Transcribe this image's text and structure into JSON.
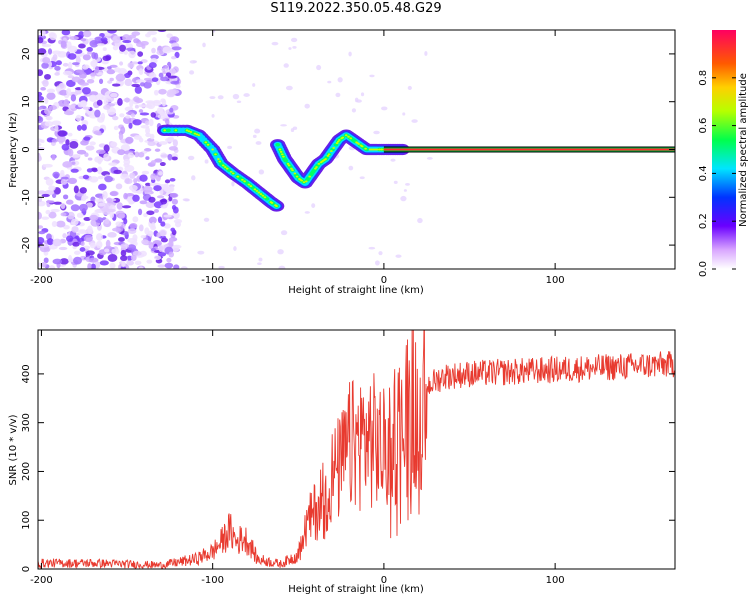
{
  "title": "S119.2022.350.05.48.G29",
  "chart_data": [
    {
      "type": "heatmap",
      "xlabel": "Height of straight line (km)",
      "ylabel": "Frequency (Hz)",
      "xlim": [
        -202,
        170
      ],
      "ylim": [
        -25,
        25
      ],
      "xticks": [
        -200,
        -100,
        0,
        100
      ],
      "yticks": [
        -20,
        -10,
        0,
        10,
        20
      ],
      "colorbar": {
        "label": "Normalized spectral amplitude",
        "range": [
          0,
          1
        ],
        "ticks": [
          0.0,
          0.2,
          0.4,
          0.6,
          0.8
        ]
      },
      "ridge": [
        {
          "x": -128,
          "y": 4
        },
        {
          "x": -115,
          "y": 4
        },
        {
          "x": -108,
          "y": 3
        },
        {
          "x": -100,
          "y": 0
        },
        {
          "x": -95,
          "y": -3
        },
        {
          "x": -88,
          "y": -5
        },
        {
          "x": -80,
          "y": -7
        },
        {
          "x": -73,
          "y": -9
        },
        {
          "x": -66,
          "y": -11
        },
        {
          "x": -62,
          "y": -12
        },
        {
          "x": -62,
          "y": 1
        },
        {
          "x": -58,
          "y": -2
        },
        {
          "x": -54,
          "y": -4
        },
        {
          "x": -50,
          "y": -6
        },
        {
          "x": -46,
          "y": -7
        },
        {
          "x": -42,
          "y": -5
        },
        {
          "x": -38,
          "y": -3
        },
        {
          "x": -34,
          "y": -2
        },
        {
          "x": -30,
          "y": 0
        },
        {
          "x": -26,
          "y": 2
        },
        {
          "x": -22,
          "y": 3
        },
        {
          "x": -18,
          "y": 2
        },
        {
          "x": -14,
          "y": 1
        },
        {
          "x": -10,
          "y": 0
        },
        {
          "x": -4,
          "y": 0
        },
        {
          "x": 4,
          "y": 0
        },
        {
          "x": 12,
          "y": 0
        }
      ],
      "tone_line": {
        "y": 0,
        "x_from": 0,
        "x_to": 170
      }
    },
    {
      "type": "line",
      "xlabel": "Height of straight line (km)",
      "ylabel": "SNR (10 * v/v)",
      "xlim": [
        -202,
        170
      ],
      "ylim": [
        0,
        490
      ],
      "xticks": [
        -200,
        -100,
        0,
        100
      ],
      "yticks": [
        0,
        100,
        200,
        300,
        400
      ],
      "series_color": "#e83a2f",
      "envelope": [
        {
          "x": -202,
          "y": 12
        },
        {
          "x": -170,
          "y": 12
        },
        {
          "x": -130,
          "y": 8
        },
        {
          "x": -110,
          "y": 20
        },
        {
          "x": -100,
          "y": 35
        },
        {
          "x": -95,
          "y": 55
        },
        {
          "x": -90,
          "y": 80
        },
        {
          "x": -86,
          "y": 55
        },
        {
          "x": -82,
          "y": 65
        },
        {
          "x": -78,
          "y": 50
        },
        {
          "x": -74,
          "y": 20
        },
        {
          "x": -60,
          "y": 10
        },
        {
          "x": -50,
          "y": 30
        },
        {
          "x": -45,
          "y": 90
        },
        {
          "x": -40,
          "y": 120
        },
        {
          "x": -35,
          "y": 160
        },
        {
          "x": -30,
          "y": 190
        },
        {
          "x": -25,
          "y": 210
        },
        {
          "x": -20,
          "y": 250
        },
        {
          "x": -15,
          "y": 260
        },
        {
          "x": -10,
          "y": 270
        },
        {
          "x": -5,
          "y": 260
        },
        {
          "x": 0,
          "y": 240
        },
        {
          "x": 5,
          "y": 270
        },
        {
          "x": 10,
          "y": 300
        },
        {
          "x": 15,
          "y": 330
        },
        {
          "x": 20,
          "y": 340
        },
        {
          "x": 25,
          "y": 375
        },
        {
          "x": 35,
          "y": 395
        },
        {
          "x": 50,
          "y": 400
        },
        {
          "x": 80,
          "y": 405
        },
        {
          "x": 110,
          "y": 410
        },
        {
          "x": 140,
          "y": 415
        },
        {
          "x": 170,
          "y": 420
        }
      ]
    }
  ],
  "colors": {
    "frame": "#000000",
    "snr_line": "#e83a2f",
    "tone_line_outer": "#000000",
    "tone_line_inner": "#ff2a2a"
  }
}
